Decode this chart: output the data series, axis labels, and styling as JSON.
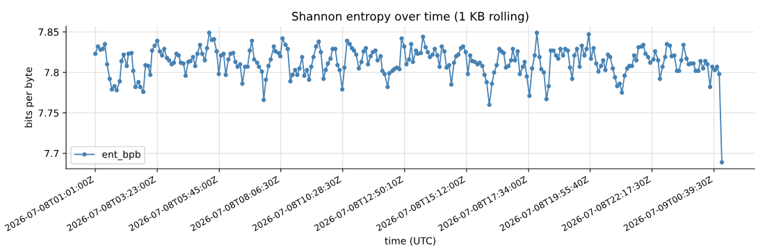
{
  "chart_data": {
    "type": "line",
    "title": "Shannon entropy over time (1 KB rolling)",
    "xlabel": "time (UTC)",
    "ylabel": "bits per byte",
    "xlim": [
      "2026-07-07T23:54",
      "2026-07-09T02:12"
    ],
    "ylim": [
      7.681,
      7.857
    ],
    "xticks": [
      {
        "value": "2026-07-08T01:01",
        "label": "2026-07-08T01:01:00Z"
      },
      {
        "value": "2026-07-08T03:23",
        "label": "2026-07-08T03:23:00Z"
      },
      {
        "value": "2026-07-08T05:45",
        "label": "2026-07-08T05:45:00Z"
      },
      {
        "value": "2026-07-08T08:06",
        "label": "2026-07-08T08:06:30Z"
      },
      {
        "value": "2026-07-08T10:28",
        "label": "2026-07-08T10:28:30Z"
      },
      {
        "value": "2026-07-08T12:50",
        "label": "2026-07-08T12:50:10Z"
      },
      {
        "value": "2026-07-08T15:12",
        "label": "2026-07-08T15:12:00Z"
      },
      {
        "value": "2026-07-08T17:34",
        "label": "2026-07-08T17:34:00Z"
      },
      {
        "value": "2026-07-08T19:55",
        "label": "2026-07-08T19:55:40Z"
      },
      {
        "value": "2026-07-08T22:17",
        "label": "2026-07-08T22:17:30Z"
      },
      {
        "value": "2026-07-09T00:39",
        "label": "2026-07-09T00:39:30Z"
      }
    ],
    "yticks": [
      7.7,
      7.75,
      7.8,
      7.85
    ],
    "grid": true,
    "legend": "lower left",
    "marker": "circle",
    "line_style": "solid",
    "series": [
      {
        "name": "ent_bpb",
        "color": "#4682b4",
        "x": [
          "2026-07-08T01:01",
          "2026-07-08T01:07",
          "2026-07-08T01:13",
          "2026-07-08T01:18",
          "2026-07-08T01:23",
          "2026-07-08T01:28",
          "2026-07-08T01:34",
          "2026-07-08T01:39",
          "2026-07-08T01:45",
          "2026-07-08T01:50",
          "2026-07-08T01:57",
          "2026-07-08T02:01",
          "2026-07-08T02:06",
          "2026-07-08T02:13",
          "2026-07-08T02:17",
          "2026-07-08T02:24",
          "2026-07-08T02:28",
          "2026-07-08T02:33",
          "2026-07-08T02:40",
          "2026-07-08T02:44",
          "2026-07-08T02:51",
          "2026-07-08T02:56",
          "2026-07-08T03:02",
          "2026-07-08T03:07",
          "2026-07-08T03:11",
          "2026-07-08T03:17",
          "2026-07-08T03:23",
          "2026-07-08T03:29",
          "2026-07-08T03:34",
          "2026-07-08T03:39",
          "2026-07-08T03:45",
          "2026-07-08T03:50",
          "2026-07-08T03:56",
          "2026-07-08T04:01",
          "2026-07-08T04:07",
          "2026-07-08T04:12",
          "2026-07-08T04:17",
          "2026-07-08T04:23",
          "2026-07-08T04:28",
          "2026-07-08T04:34",
          "2026-07-08T04:39",
          "2026-07-08T04:45",
          "2026-07-08T04:50",
          "2026-07-08T04:55",
          "2026-07-08T05:01",
          "2026-07-08T05:06",
          "2026-07-08T05:12",
          "2026-07-08T05:17",
          "2026-07-08T05:22",
          "2026-07-08T05:28",
          "2026-07-08T05:33",
          "2026-07-08T05:39",
          "2026-07-08T05:44",
          "2026-07-08T05:49",
          "2026-07-08T05:55",
          "2026-07-08T06:00",
          "2026-07-08T06:06",
          "2026-07-08T06:11",
          "2026-07-08T06:17",
          "2026-07-08T06:22",
          "2026-07-08T06:27",
          "2026-07-08T06:33",
          "2026-07-08T06:38",
          "2026-07-08T06:44",
          "2026-07-08T06:50",
          "2026-07-08T06:55",
          "2026-07-08T07:00",
          "2026-07-08T07:05",
          "2026-07-08T07:12",
          "2026-07-08T07:16",
          "2026-07-08T07:23",
          "2026-07-08T07:27",
          "2026-07-08T07:32",
          "2026-07-08T07:38",
          "2026-07-08T07:43",
          "2026-07-08T07:50",
          "2026-07-08T07:54",
          "2026-07-08T08:01",
          "2026-07-08T08:05",
          "2026-07-08T08:10",
          "2026-07-08T08:17",
          "2026-07-08T08:22",
          "2026-07-08T08:28",
          "2026-07-08T08:33",
          "2026-07-08T08:39",
          "2026-07-08T08:44",
          "2026-07-08T08:49",
          "2026-07-08T08:55",
          "2026-07-08T09:00",
          "2026-07-08T09:06",
          "2026-07-08T09:11",
          "2026-07-08T09:16",
          "2026-07-08T09:21",
          "2026-07-08T09:27",
          "2026-07-08T09:33",
          "2026-07-08T09:38",
          "2026-07-08T09:44",
          "2026-07-08T09:49",
          "2026-07-08T09:54",
          "2026-07-08T10:00",
          "2026-07-08T10:05",
          "2026-07-08T10:11",
          "2026-07-08T10:16",
          "2026-07-08T10:21",
          "2026-07-08T10:27",
          "2026-07-08T10:32",
          "2026-07-08T10:38",
          "2026-07-08T10:44",
          "2026-07-08T10:49",
          "2026-07-08T10:54",
          "2026-07-08T10:59",
          "2026-07-08T11:05",
          "2026-07-08T11:11",
          "2026-07-08T11:16",
          "2026-07-08T11:21",
          "2026-07-08T11:26",
          "2026-07-08T11:32",
          "2026-07-08T11:37",
          "2026-07-08T11:43",
          "2026-07-08T11:48",
          "2026-07-08T11:55",
          "2026-07-08T11:59",
          "2026-07-08T12:04",
          "2026-07-08T12:11",
          "2026-07-08T12:15",
          "2026-07-08T12:22",
          "2026-07-08T12:26",
          "2026-07-08T12:32",
          "2026-07-08T12:38",
          "2026-07-08T12:43",
          "2026-07-08T12:49",
          "2026-07-08T12:54",
          "2026-07-08T13:00",
          "2026-07-08T13:05",
          "2026-07-08T13:09",
          "2026-07-08T13:16",
          "2026-07-08T13:20",
          "2026-07-08T13:27",
          "2026-07-08T13:32",
          "2026-07-08T13:38",
          "2026-07-08T13:43",
          "2026-07-08T13:48",
          "2026-07-08T13:54",
          "2026-07-08T13:59",
          "2026-07-08T14:05",
          "2026-07-08T14:10",
          "2026-07-08T14:15",
          "2026-07-08T14:21",
          "2026-07-08T14:26",
          "2026-07-08T14:32",
          "2026-07-08T14:37",
          "2026-07-08T14:43",
          "2026-07-08T14:48",
          "2026-07-08T14:53",
          "2026-07-08T14:59",
          "2026-07-08T15:04",
          "2026-07-08T15:10",
          "2026-07-08T15:15",
          "2026-07-08T15:20",
          "2026-07-08T15:25",
          "2026-07-08T15:31",
          "2026-07-08T15:37",
          "2026-07-08T15:42",
          "2026-07-08T15:48",
          "2026-07-08T15:53",
          "2026-07-08T15:58",
          "2026-07-08T16:04",
          "2026-07-08T16:10",
          "2026-07-08T16:15",
          "2026-07-08T16:21",
          "2026-07-08T16:27",
          "2026-07-08T16:32",
          "2026-07-08T16:37",
          "2026-07-08T16:42",
          "2026-07-08T16:48",
          "2026-07-08T16:54",
          "2026-07-08T16:58",
          "2026-07-08T17:03",
          "2026-07-08T17:09",
          "2026-07-08T17:14",
          "2026-07-08T17:21",
          "2026-07-08T17:25",
          "2026-07-08T17:30",
          "2026-07-08T17:36",
          "2026-07-08T17:42",
          "2026-07-08T17:48",
          "2026-07-08T17:53",
          "2026-07-08T17:59",
          "2026-07-08T18:03",
          "2026-07-08T18:09",
          "2026-07-08T18:15",
          "2026-07-08T18:20",
          "2026-07-08T18:25",
          "2026-07-08T18:31",
          "2026-07-08T18:37",
          "2026-07-08T18:42",
          "2026-07-08T18:47",
          "2026-07-08T18:53",
          "2026-07-08T18:58",
          "2026-07-08T19:04",
          "2026-07-08T19:09",
          "2026-07-08T19:14",
          "2026-07-08T19:19",
          "2026-07-08T19:25",
          "2026-07-08T19:31",
          "2026-07-08T19:36",
          "2026-07-08T19:42",
          "2026-07-08T19:47",
          "2026-07-08T19:52",
          "2026-07-08T19:57",
          "2026-07-08T20:03",
          "2026-07-08T20:09",
          "2026-07-08T20:14",
          "2026-07-08T20:20",
          "2026-07-08T20:25",
          "2026-07-08T20:30",
          "2026-07-08T20:36",
          "2026-07-08T20:41",
          "2026-07-08T20:47",
          "2026-07-08T20:52",
          "2026-07-08T20:57",
          "2026-07-08T21:03",
          "2026-07-08T21:08",
          "2026-07-08T21:14",
          "2026-07-08T21:20",
          "2026-07-08T21:25",
          "2026-07-08T21:31",
          "2026-07-08T21:36",
          "2026-07-08T21:41",
          "2026-07-08T21:46",
          "2026-07-08T21:53",
          "2026-07-08T21:57",
          "2026-07-08T22:02",
          "2026-07-08T22:08",
          "2026-07-08T22:13",
          "2026-07-08T22:20",
          "2026-07-08T22:24",
          "2026-07-08T22:31",
          "2026-07-08T22:35",
          "2026-07-08T22:41",
          "2026-07-08T22:47",
          "2026-07-08T22:51",
          "2026-07-08T22:58",
          "2026-07-08T23:02",
          "2026-07-08T23:08",
          "2026-07-08T23:14",
          "2026-07-08T23:19",
          "2026-07-08T23:24",
          "2026-07-08T23:29",
          "2026-07-08T23:36",
          "2026-07-08T23:41",
          "2026-07-08T23:46",
          "2026-07-08T23:52",
          "2026-07-08T23:57",
          "2026-07-09T00:03",
          "2026-07-09T00:08",
          "2026-07-09T00:14",
          "2026-07-09T00:19",
          "2026-07-09T00:24",
          "2026-07-09T00:30",
          "2026-07-09T00:35",
          "2026-07-09T00:41",
          "2026-07-09T00:46",
          "2026-07-09T00:51",
          "2026-07-09T00:57"
        ],
        "values": [
          7.823,
          7.832,
          7.828,
          7.829,
          7.835,
          7.81,
          7.792,
          7.779,
          7.783,
          7.778,
          7.789,
          7.814,
          7.822,
          7.808,
          7.823,
          7.824,
          7.802,
          7.782,
          7.788,
          7.782,
          7.776,
          7.809,
          7.808,
          7.797,
          7.827,
          7.833,
          7.839,
          7.826,
          7.821,
          7.829,
          7.818,
          7.815,
          7.81,
          7.812,
          7.823,
          7.821,
          7.812,
          7.811,
          7.796,
          7.813,
          7.814,
          7.819,
          7.808,
          7.823,
          7.834,
          7.823,
          7.815,
          7.83,
          7.849,
          7.84,
          7.841,
          7.826,
          7.798,
          7.821,
          7.823,
          7.797,
          7.816,
          7.823,
          7.824,
          7.813,
          7.807,
          7.81,
          7.786,
          7.807,
          7.807,
          7.827,
          7.839,
          7.816,
          7.812,
          7.807,
          7.801,
          7.766,
          7.791,
          7.808,
          7.816,
          7.832,
          7.826,
          7.824,
          7.82,
          7.842,
          7.834,
          7.829,
          7.789,
          7.797,
          7.803,
          7.797,
          7.805,
          7.819,
          7.796,
          7.803,
          7.791,
          7.807,
          7.819,
          7.832,
          7.838,
          7.825,
          7.792,
          7.803,
          7.811,
          7.817,
          7.829,
          7.829,
          7.809,
          7.803,
          7.779,
          7.806,
          7.839,
          7.835,
          7.83,
          7.827,
          7.822,
          7.805,
          7.813,
          7.826,
          7.83,
          7.81,
          7.82,
          7.825,
          7.827,
          7.815,
          7.82,
          7.802,
          7.798,
          7.782,
          7.799,
          7.802,
          7.804,
          7.806,
          7.804,
          7.842,
          7.832,
          7.81,
          7.816,
          7.835,
          7.813,
          7.827,
          7.823,
          7.824,
          7.844,
          7.831,
          7.825,
          7.819,
          7.822,
          7.829,
          7.821,
          7.807,
          7.832,
          7.826,
          7.806,
          7.809,
          7.785,
          7.812,
          7.82,
          7.822,
          7.83,
          7.832,
          7.825,
          7.798,
          7.821,
          7.814,
          7.813,
          7.81,
          7.812,
          7.808,
          7.797,
          7.788,
          7.76,
          7.786,
          7.8,
          7.809,
          7.829,
          7.826,
          7.824,
          7.806,
          7.808,
          7.815,
          7.829,
          7.815,
          7.826,
          7.798,
          7.807,
          7.813,
          7.795,
          7.771,
          7.805,
          7.821,
          7.849,
          7.819,
          7.804,
          7.8,
          7.767,
          7.783,
          7.827,
          7.827,
          7.821,
          7.817,
          7.829,
          7.821,
          7.829,
          7.827,
          7.806,
          7.792,
          7.821,
          7.829,
          7.807,
          7.833,
          7.821,
          7.829,
          7.847,
          7.817,
          7.83,
          7.811,
          7.801,
          7.808,
          7.815,
          7.803,
          7.822,
          7.819,
          7.805,
          7.794,
          7.783,
          7.786,
          7.775,
          7.796,
          7.805,
          7.808,
          7.808,
          7.821,
          7.815,
          7.831,
          7.832,
          7.834,
          7.823,
          7.819,
          7.812,
          7.816,
          7.826,
          7.815,
          7.792,
          7.807,
          7.819,
          7.835,
          7.833,
          7.82,
          7.821,
          7.802,
          7.802,
          7.815,
          7.834,
          7.817,
          7.81,
          7.811,
          7.811,
          7.802,
          7.802,
          7.814,
          7.805,
          7.814,
          7.81,
          7.782,
          7.807,
          7.803,
          7.807,
          7.798,
          7.689
        ]
      }
    ]
  }
}
